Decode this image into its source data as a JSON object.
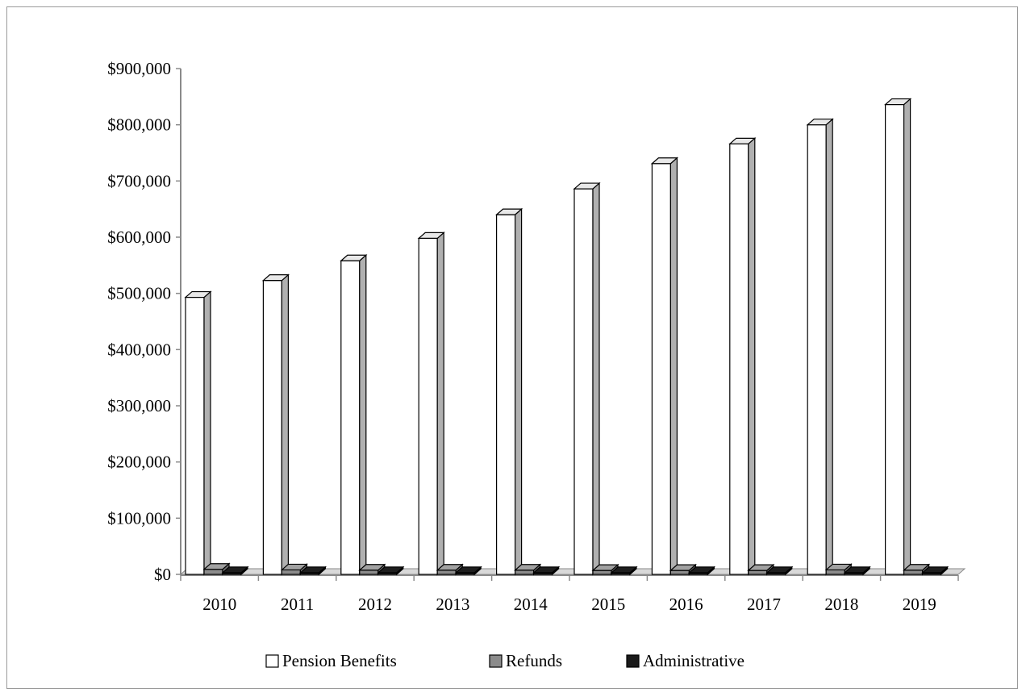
{
  "chart_data": {
    "type": "bar",
    "style": "3d-clustered-column",
    "title": "",
    "xlabel": "",
    "ylabel": "",
    "categories": [
      "2010",
      "2011",
      "2012",
      "2013",
      "2014",
      "2015",
      "2016",
      "2017",
      "2018",
      "2019"
    ],
    "series": [
      {
        "name": "Pension Benefits",
        "color": "#ffffff",
        "values": [
          493000,
          523000,
          558000,
          598000,
          640000,
          686000,
          731000,
          766000,
          800000,
          836000
        ]
      },
      {
        "name": "Refunds",
        "color": "#8c8c8c",
        "values": [
          9000,
          8000,
          7500,
          7500,
          7500,
          7000,
          7000,
          7000,
          8000,
          7500
        ]
      },
      {
        "name": "Administrative",
        "color": "#1a1a1a",
        "values": [
          3000,
          3000,
          3000,
          3000,
          3000,
          3000,
          3000,
          3000,
          3000,
          3000
        ]
      }
    ],
    "yticks": [
      "$0",
      "$100,000",
      "$200,000",
      "$300,000",
      "$400,000",
      "$500,000",
      "$600,000",
      "$700,000",
      "$800,000",
      "$900,000"
    ],
    "ylim": [
      0,
      900000
    ],
    "grid": false,
    "legend_position": "bottom"
  }
}
